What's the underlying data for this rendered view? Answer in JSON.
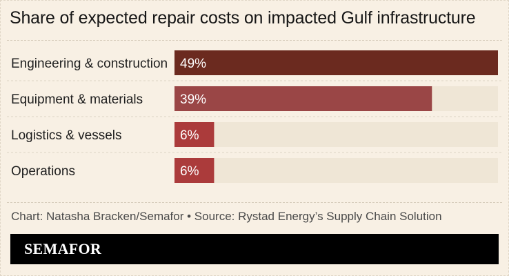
{
  "title": "Share of expected repair costs on impacted Gulf infrastructure",
  "credit": "Chart: Natasha Bracken/Semafor • Source: Rystad Energy’s Supply Chain Solution",
  "brand": "SEMAFOR",
  "colors": {
    "background": "#f8f0e4",
    "track": "#efe6d6",
    "bars": [
      "#6b2a1f",
      "#9a4646",
      "#ab3b3b",
      "#ab3b3b"
    ]
  },
  "chart_data": {
    "type": "bar",
    "orientation": "horizontal",
    "categories": [
      "Engineering & construction",
      "Equipment & materials",
      "Logistics & vessels",
      "Operations"
    ],
    "values": [
      49,
      39,
      6,
      6
    ],
    "value_labels": [
      "49%",
      "39%",
      "6%",
      "6%"
    ],
    "xlim": [
      0,
      49
    ],
    "grid": false,
    "legend": "none"
  }
}
